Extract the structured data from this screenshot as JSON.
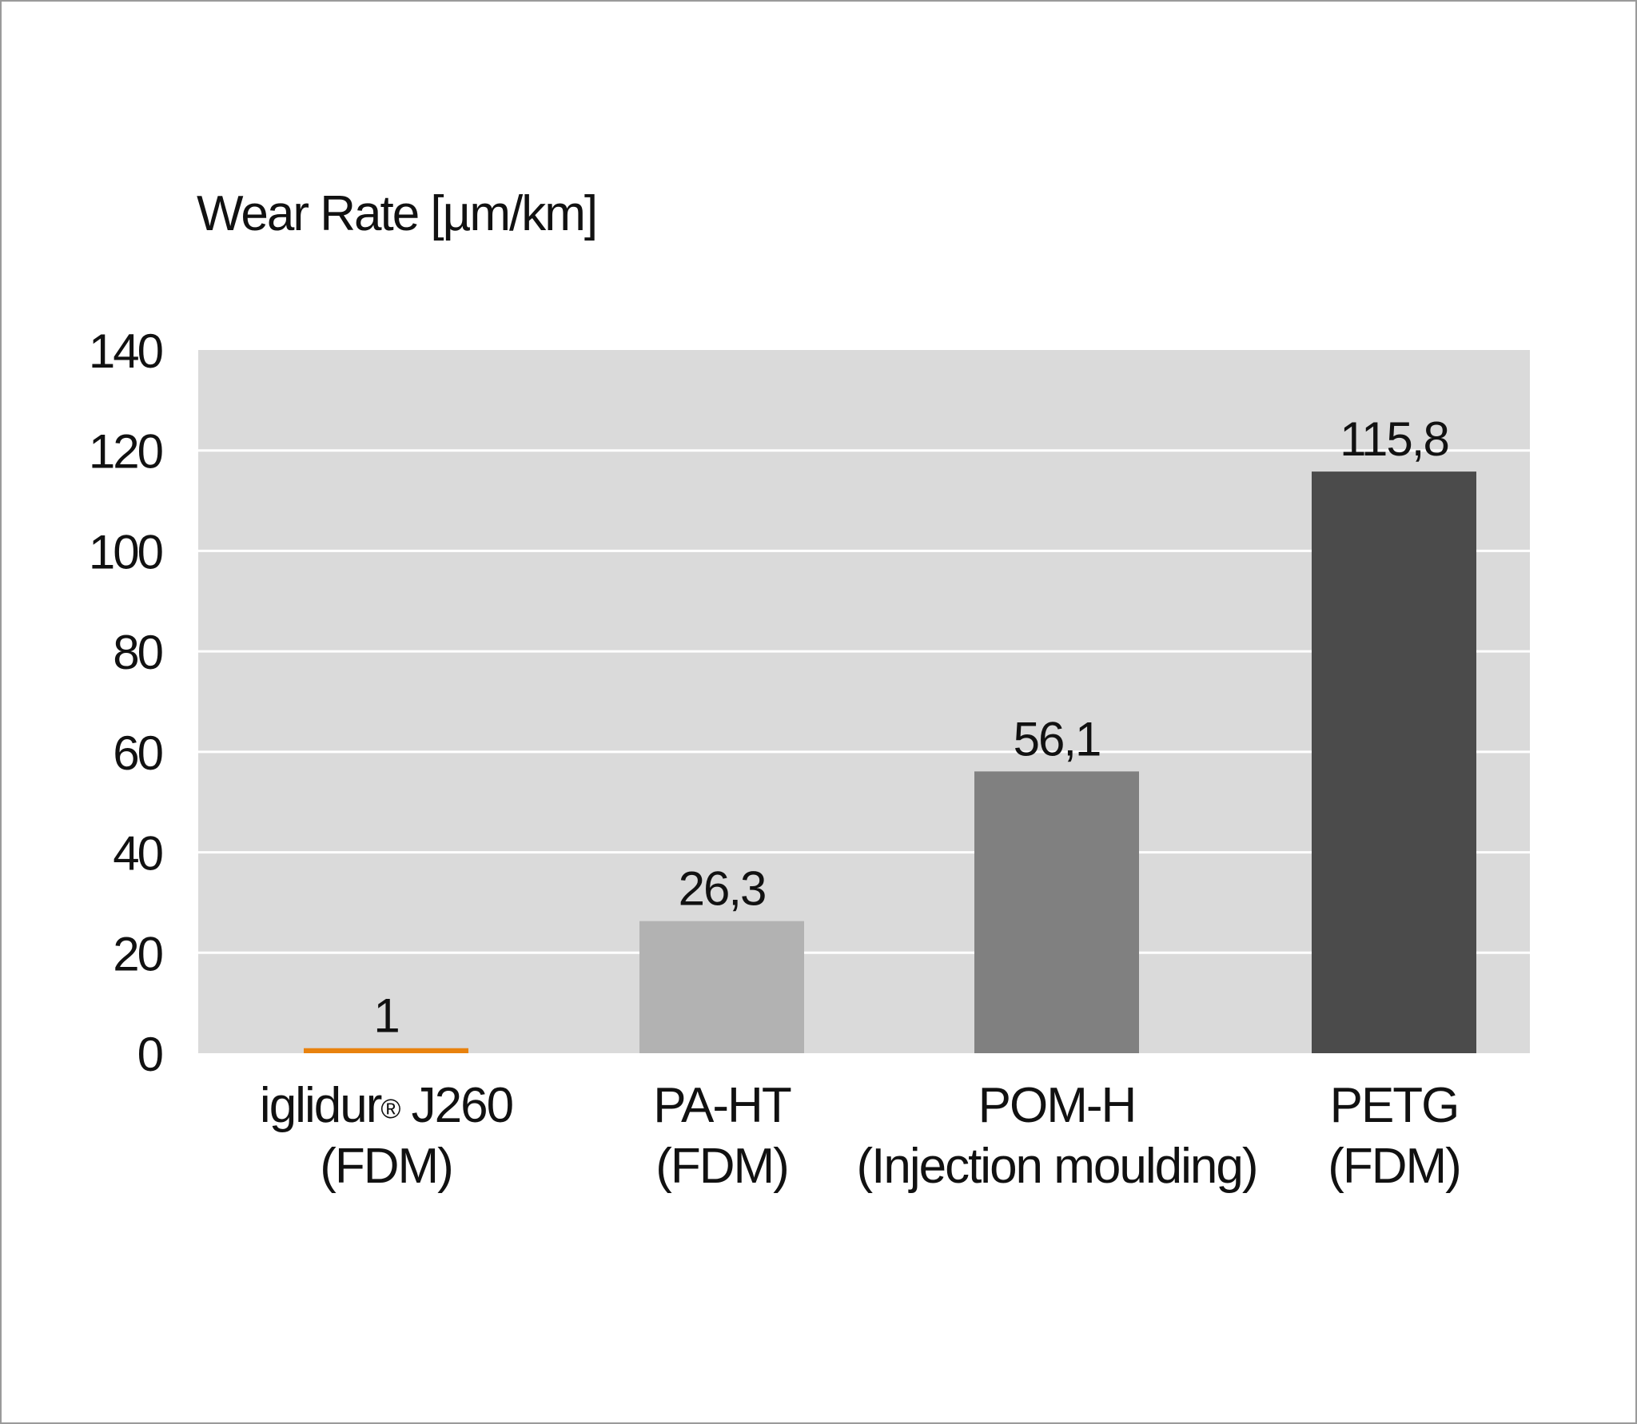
{
  "chart_data": {
    "type": "bar",
    "ylabel": "Wear Rate [µm/km]",
    "ylim": [
      0,
      140
    ],
    "yticks": [
      0,
      20,
      40,
      60,
      80,
      100,
      120,
      140
    ],
    "grid": true,
    "categories": [
      {
        "name": "iglidur",
        "mark": "®",
        "name_tail": " J260",
        "line2": "(FDM)"
      },
      {
        "name": "PA-HT",
        "mark": "",
        "name_tail": "",
        "line2": "(FDM)"
      },
      {
        "name": "POM-H",
        "mark": "",
        "name_tail": "",
        "line2": "(Injection moulding)"
      },
      {
        "name": "PETG",
        "mark": "",
        "name_tail": "",
        "line2": "(FDM)"
      }
    ],
    "values": [
      1,
      26.3,
      56.1,
      115.8
    ],
    "value_labels": [
      "1",
      "26,3",
      "56,1",
      "115,8"
    ],
    "colors": [
      "#e8820e",
      "#b2b2b2",
      "#808080",
      "#4b4b4b"
    ],
    "plot_background": "#dadada",
    "grid_color": "#ffffff"
  }
}
